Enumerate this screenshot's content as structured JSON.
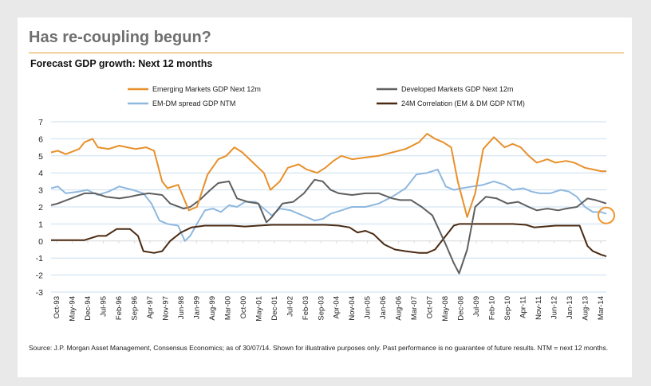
{
  "slide": {
    "title": "Has re-coupling begun?",
    "subtitle": "Forecast GDP growth: Next 12 months",
    "source": "Source: J.P. Morgan Asset Management, Consensus Economics; as of 30/07/14. Shown for illustrative purposes only. Past performance is no guarantee of future results. NTM = next 12 months."
  },
  "chart_data": {
    "type": "line",
    "title": "Forecast GDP growth: Next 12 months",
    "xlabel": "",
    "ylabel": "",
    "ylim": [
      -3,
      7
    ],
    "yticks": [
      7,
      6,
      5,
      4,
      3,
      2,
      1,
      0,
      -1,
      -2,
      -3
    ],
    "grid": true,
    "legend_position": "top",
    "x_labels": [
      "Oct-93",
      "May-94",
      "Dec-94",
      "Jul-95",
      "Feb-96",
      "Sep-96",
      "Apr-97",
      "Nov-97",
      "Jun-98",
      "Jan-99",
      "Aug-99",
      "Mar-00",
      "Oct-00",
      "May-01",
      "Dec-01",
      "Jul-02",
      "Feb-03",
      "Sep-03",
      "Apr-04",
      "Nov-04",
      "Jun-05",
      "Jan-06",
      "Aug-06",
      "Mar-07",
      "Oct-07",
      "May-08",
      "Dec-08",
      "Jul-09",
      "Feb-10",
      "Sep-10",
      "Apr-11",
      "Nov-11",
      "Jun-12",
      "Jan-13",
      "Aug-13",
      "Mar-14"
    ],
    "x_start": 1993.75,
    "x_end": 2014.5,
    "highlight": {
      "x": 2014.5,
      "y": 1.5,
      "color": "#f0962a"
    },
    "series": [
      {
        "name": "Emerging Markets GDP Next 12m",
        "color": "#e8902a",
        "x": [
          1993.75,
          1994.0,
          1994.3,
          1994.8,
          1995.0,
          1995.3,
          1995.5,
          1995.9,
          1996.3,
          1996.6,
          1996.9,
          1997.3,
          1997.6,
          1997.9,
          1998.1,
          1998.5,
          1998.9,
          1999.2,
          1999.6,
          2000.0,
          2000.3,
          2000.6,
          2000.9,
          2001.3,
          2001.7,
          2001.95,
          2002.3,
          2002.6,
          2003.0,
          2003.3,
          2003.7,
          2004.0,
          2004.3,
          2004.6,
          2005.0,
          2005.5,
          2006.0,
          2006.5,
          2007.0,
          2007.5,
          2007.8,
          2008.1,
          2008.4,
          2008.7,
          2008.95,
          2009.3,
          2009.6,
          2009.9,
          2010.3,
          2010.7,
          2011.0,
          2011.3,
          2011.6,
          2011.9,
          2012.3,
          2012.6,
          2013.0,
          2013.3,
          2013.7,
          2014.0,
          2014.3,
          2014.5
        ],
        "values": [
          5.2,
          5.3,
          5.1,
          5.4,
          5.8,
          6.0,
          5.5,
          5.4,
          5.6,
          5.5,
          5.4,
          5.5,
          5.3,
          3.5,
          3.1,
          3.3,
          1.8,
          2.0,
          3.9,
          4.8,
          5.0,
          5.5,
          5.2,
          4.6,
          4.0,
          3.0,
          3.5,
          4.3,
          4.5,
          4.2,
          4.0,
          4.3,
          4.7,
          5.0,
          4.8,
          4.9,
          5.0,
          5.2,
          5.4,
          5.8,
          6.3,
          6.0,
          5.8,
          5.5,
          3.5,
          1.4,
          2.8,
          5.4,
          6.1,
          5.5,
          5.7,
          5.5,
          5.0,
          4.6,
          4.8,
          4.6,
          4.7,
          4.6,
          4.3,
          4.2,
          4.1,
          4.1
        ]
      },
      {
        "name": "Developed Markets GDP Next 12m",
        "color": "#5f5f5f",
        "x": [
          1993.75,
          1994.0,
          1994.5,
          1995.0,
          1995.4,
          1995.8,
          1996.3,
          1996.7,
          1997.0,
          1997.4,
          1997.9,
          1998.2,
          1998.7,
          1998.95,
          1999.3,
          1999.7,
          2000.0,
          2000.4,
          2000.7,
          2001.1,
          2001.5,
          2001.8,
          2002.0,
          2002.4,
          2002.8,
          2003.2,
          2003.6,
          2003.9,
          2004.2,
          2004.5,
          2005.0,
          2005.5,
          2006.0,
          2006.5,
          2006.8,
          2007.2,
          2007.6,
          2008.0,
          2008.5,
          2008.8,
          2009.0,
          2009.3,
          2009.6,
          2010.0,
          2010.4,
          2010.8,
          2011.2,
          2011.6,
          2011.9,
          2012.3,
          2012.7,
          2013.0,
          2013.4,
          2013.8,
          2014.1,
          2014.5
        ],
        "values": [
          2.1,
          2.2,
          2.5,
          2.8,
          2.8,
          2.6,
          2.5,
          2.6,
          2.7,
          2.8,
          2.7,
          2.2,
          1.9,
          2.0,
          2.4,
          3.0,
          3.4,
          3.5,
          2.5,
          2.3,
          2.2,
          1.1,
          1.4,
          2.2,
          2.3,
          2.8,
          3.6,
          3.5,
          3.0,
          2.8,
          2.7,
          2.8,
          2.8,
          2.5,
          2.4,
          2.4,
          2.0,
          1.5,
          -0.2,
          -1.3,
          -1.9,
          -0.5,
          2.0,
          2.6,
          2.5,
          2.2,
          2.3,
          2.0,
          1.8,
          1.9,
          1.8,
          1.9,
          2.0,
          2.5,
          2.4,
          2.2
        ]
      },
      {
        "name": "EM-DM spread GDP NTM",
        "color": "#8fb8df",
        "x": [
          1993.75,
          1994.0,
          1994.3,
          1994.8,
          1995.1,
          1995.5,
          1995.9,
          1996.3,
          1996.8,
          1997.2,
          1997.5,
          1997.8,
          1998.1,
          1998.5,
          1998.75,
          1998.95,
          1999.2,
          1999.5,
          1999.8,
          2000.1,
          2000.4,
          2000.7,
          2001.0,
          2001.4,
          2001.7,
          2002.0,
          2002.3,
          2002.7,
          2003.0,
          2003.3,
          2003.6,
          2003.9,
          2004.2,
          2004.6,
          2005.0,
          2005.5,
          2006.0,
          2006.5,
          2007.0,
          2007.4,
          2007.8,
          2008.2,
          2008.5,
          2008.8,
          2009.1,
          2009.5,
          2009.9,
          2010.3,
          2010.7,
          2011.0,
          2011.4,
          2011.7,
          2012.0,
          2012.4,
          2012.8,
          2013.1,
          2013.4,
          2013.7,
          2014.0,
          2014.3,
          2014.5
        ],
        "values": [
          3.1,
          3.2,
          2.8,
          2.9,
          3.0,
          2.7,
          2.9,
          3.2,
          3.0,
          2.8,
          2.2,
          1.2,
          1.0,
          0.9,
          0.0,
          0.3,
          1.0,
          1.8,
          1.9,
          1.7,
          2.1,
          2.0,
          2.3,
          2.3,
          1.9,
          1.5,
          1.9,
          1.8,
          1.6,
          1.4,
          1.2,
          1.3,
          1.6,
          1.8,
          2.0,
          2.0,
          2.2,
          2.6,
          3.1,
          3.9,
          4.0,
          4.2,
          3.2,
          3.0,
          3.1,
          3.2,
          3.3,
          3.5,
          3.3,
          3.0,
          3.1,
          2.9,
          2.8,
          2.8,
          3.0,
          2.9,
          2.6,
          2.0,
          1.7,
          1.7,
          1.6
        ]
      },
      {
        "name": "24M Correlation (EM & DM GDP NTM)",
        "color": "#4a2a12",
        "x": [
          1993.75,
          1994.5,
          1995.0,
          1995.5,
          1995.8,
          1996.2,
          1996.7,
          1997.0,
          1997.2,
          1997.6,
          1997.9,
          1998.2,
          1998.6,
          1999.0,
          1999.5,
          2000.0,
          2000.5,
          2001.0,
          2001.5,
          2002.0,
          2002.5,
          2003.0,
          2003.5,
          2004.0,
          2004.5,
          2004.9,
          2005.2,
          2005.5,
          2005.8,
          2006.2,
          2006.6,
          2007.0,
          2007.5,
          2007.8,
          2008.1,
          2008.5,
          2008.8,
          2009.0,
          2009.5,
          2010.0,
          2010.5,
          2011.0,
          2011.5,
          2011.8,
          2012.2,
          2012.6,
          2013.0,
          2013.5,
          2013.8,
          2014.0,
          2014.3,
          2014.5
        ],
        "values": [
          0.05,
          0.05,
          0.05,
          0.3,
          0.3,
          0.7,
          0.7,
          0.3,
          -0.6,
          -0.7,
          -0.6,
          0.0,
          0.5,
          0.8,
          0.9,
          0.9,
          0.9,
          0.85,
          0.9,
          0.95,
          0.95,
          0.95,
          0.95,
          0.95,
          0.9,
          0.8,
          0.5,
          0.6,
          0.4,
          -0.2,
          -0.5,
          -0.6,
          -0.7,
          -0.7,
          -0.5,
          0.3,
          0.9,
          1.0,
          1.0,
          1.0,
          1.0,
          1.0,
          0.95,
          0.8,
          0.85,
          0.9,
          0.9,
          0.9,
          -0.3,
          -0.6,
          -0.8,
          -0.9
        ]
      }
    ]
  }
}
